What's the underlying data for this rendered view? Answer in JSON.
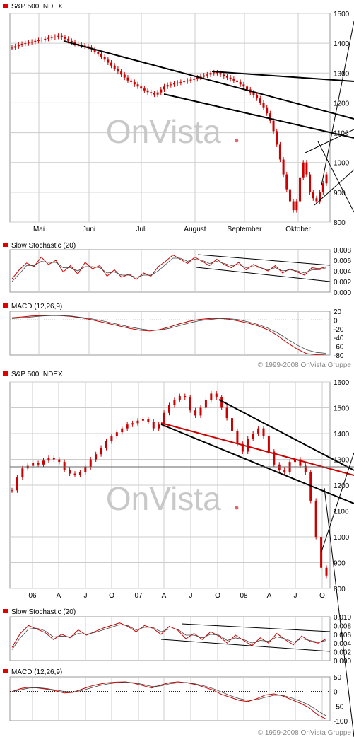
{
  "copyright": "© 1999-2008 OnVista Gruppe",
  "watermark": "OnVista",
  "colors": {
    "red": "#cc0000",
    "black": "#000000",
    "grid": "#cccccc",
    "watermark": "#c8c8c8",
    "legend_square": "#e00000"
  },
  "chart_data": [
    {
      "type": "line",
      "title": "S&P 500 INDEX",
      "style": "candlestick",
      "period": "Apr–Oct 2008 (daily)",
      "x_ticks": [
        "Mai",
        "Juni",
        "Juli",
        "August",
        "September",
        "Oktober"
      ],
      "y_ticks": [
        800,
        900,
        1000,
        1100,
        1200,
        1300,
        1400,
        1500
      ],
      "ylim": [
        800,
        1500
      ],
      "series": [
        {
          "values": [
            1385,
            1390,
            1395,
            1398,
            1400,
            1402,
            1405,
            1408,
            1410,
            1412,
            1415,
            1418,
            1420,
            1422,
            1425,
            1420,
            1415,
            1408,
            1404,
            1398,
            1394,
            1392,
            1390,
            1385,
            1380,
            1372,
            1365,
            1355,
            1345,
            1335,
            1325,
            1315,
            1305,
            1295,
            1285,
            1275,
            1270,
            1262,
            1255,
            1248,
            1242,
            1236,
            1232,
            1228,
            1235,
            1245,
            1255,
            1260,
            1262,
            1265,
            1268,
            1270,
            1272,
            1275,
            1278,
            1280,
            1285,
            1288,
            1292,
            1295,
            1300,
            1302,
            1300,
            1295,
            1290,
            1285,
            1280,
            1275,
            1270,
            1262,
            1255,
            1245,
            1235,
            1225,
            1215,
            1200,
            1185,
            1165,
            1140,
            1105,
            1060,
            1010,
            960,
            910,
            870,
            840,
            870,
            950,
            1000,
            960,
            900,
            880,
            870,
            900,
            930,
            960
          ]
        }
      ],
      "grid": true
    },
    {
      "type": "line",
      "title": "Slow Stochastic (20)",
      "y_ticks": [
        "0.008",
        "0.006",
        "0.004",
        "0.002",
        "0.000"
      ],
      "ylim": [
        0,
        0.008
      ],
      "series": [
        {
          "values": [
            0.0025,
            0.0042,
            0.0055,
            0.0048,
            0.0066,
            0.0052,
            0.006,
            0.0038,
            0.005,
            0.0034,
            0.0056,
            0.0044,
            0.005,
            0.003,
            0.0042,
            0.0028,
            0.0034,
            0.0024,
            0.0036,
            0.003,
            0.0048,
            0.0058,
            0.007,
            0.0062,
            0.0054,
            0.0066,
            0.0058,
            0.005,
            0.0062,
            0.0052,
            0.0046,
            0.0056,
            0.0042,
            0.0052,
            0.0046,
            0.004,
            0.005,
            0.0036,
            0.0044,
            0.0038,
            0.0032,
            0.0046,
            0.0044,
            0.0048
          ]
        },
        {
          "values": [
            0.002,
            0.0034,
            0.005,
            0.005,
            0.0058,
            0.0056,
            0.0056,
            0.0046,
            0.0046,
            0.004,
            0.0048,
            0.0048,
            0.0046,
            0.0036,
            0.0038,
            0.0032,
            0.0032,
            0.0028,
            0.0032,
            0.0032,
            0.004,
            0.0052,
            0.0064,
            0.0064,
            0.0058,
            0.0062,
            0.006,
            0.0054,
            0.0058,
            0.0054,
            0.005,
            0.0052,
            0.0046,
            0.0048,
            0.0046,
            0.0042,
            0.0046,
            0.004,
            0.0042,
            0.004,
            0.0036,
            0.0042,
            0.0042,
            0.0046
          ]
        }
      ],
      "grid": true
    },
    {
      "type": "line",
      "title": "MACD (12,26,9)",
      "y_ticks": [
        "20",
        "0",
        "-20",
        "-40",
        "-60",
        "-80"
      ],
      "ylim": [
        -80,
        20
      ],
      "series": [
        {
          "values": [
            5,
            7,
            9,
            10,
            11,
            10,
            8,
            5,
            1,
            -4,
            -9,
            -14,
            -19,
            -23,
            -25,
            -22,
            -16,
            -9,
            -3,
            1,
            3,
            4,
            2,
            -2,
            -7,
            -13,
            -22,
            -35,
            -52,
            -66,
            -77,
            -79,
            -78
          ]
        },
        {
          "values": [
            3,
            5,
            7,
            9,
            10,
            10,
            9,
            6,
            3,
            -1,
            -6,
            -11,
            -16,
            -20,
            -23,
            -23,
            -19,
            -13,
            -7,
            -2,
            1,
            3,
            3,
            1,
            -4,
            -10,
            -18,
            -29,
            -43,
            -57,
            -68,
            -74,
            -76
          ]
        }
      ],
      "grid": true
    },
    {
      "type": "line",
      "title": "S&P 500 INDEX",
      "style": "candlestick",
      "period": "2006–2008 (weekly)",
      "x_ticks": [
        "06",
        "A",
        "J",
        "O",
        "07",
        "A",
        "J",
        "O",
        "08",
        "A",
        "J",
        "O"
      ],
      "y_ticks": [
        800,
        900,
        1000,
        1100,
        1200,
        1300,
        1400,
        1500,
        1600
      ],
      "ylim": [
        800,
        1600
      ],
      "series": [
        {
          "values": [
            1180,
            1230,
            1265,
            1275,
            1285,
            1280,
            1295,
            1305,
            1300,
            1290,
            1260,
            1245,
            1240,
            1250,
            1270,
            1300,
            1320,
            1345,
            1370,
            1390,
            1405,
            1420,
            1435,
            1440,
            1450,
            1455,
            1445,
            1420,
            1435,
            1480,
            1510,
            1530,
            1545,
            1540,
            1490,
            1470,
            1500,
            1530,
            1555,
            1540,
            1500,
            1460,
            1410,
            1360,
            1330,
            1380,
            1400,
            1420,
            1390,
            1330,
            1280,
            1260,
            1250,
            1290,
            1300,
            1275,
            1250,
            1140,
            1000,
            880,
            850
          ]
        }
      ],
      "grid": true
    },
    {
      "type": "line",
      "title": "Slow Stochastic (20)",
      "y_ticks": [
        "0.010",
        "0.008",
        "0.006",
        "0.004",
        "0.002",
        "0.000"
      ],
      "ylim": [
        0,
        0.01
      ],
      "series": [
        {
          "values": [
            0.003,
            0.0062,
            0.008,
            0.0072,
            0.0064,
            0.0048,
            0.006,
            0.0052,
            0.007,
            0.0058,
            0.0066,
            0.0074,
            0.008,
            0.0086,
            0.0078,
            0.0066,
            0.008,
            0.0074,
            0.006,
            0.0078,
            0.007,
            0.005,
            0.0062,
            0.0048,
            0.0066,
            0.0056,
            0.004,
            0.0058,
            0.0046,
            0.0034,
            0.0052,
            0.004,
            0.0062,
            0.0048,
            0.0036,
            0.0056,
            0.0044,
            0.004,
            0.005
          ]
        },
        {
          "values": [
            0.0025,
            0.0052,
            0.0072,
            0.0074,
            0.0068,
            0.0054,
            0.0056,
            0.0054,
            0.0062,
            0.006,
            0.0064,
            0.007,
            0.0076,
            0.0082,
            0.008,
            0.007,
            0.0076,
            0.0076,
            0.0066,
            0.0072,
            0.0072,
            0.0058,
            0.0058,
            0.0052,
            0.006,
            0.0058,
            0.0046,
            0.0052,
            0.0048,
            0.004,
            0.0046,
            0.0044,
            0.0054,
            0.005,
            0.0042,
            0.005,
            0.0046,
            0.0042,
            0.0046
          ]
        }
      ],
      "grid": true
    },
    {
      "type": "line",
      "title": "MACD (12,26,9)",
      "y_ticks": [
        "50",
        "0",
        "-50",
        "-100"
      ],
      "ylim": [
        -100,
        50
      ],
      "series": [
        {
          "values": [
            0,
            10,
            15,
            12,
            8,
            2,
            -5,
            -3,
            8,
            18,
            25,
            30,
            32,
            33,
            28,
            20,
            12,
            22,
            30,
            33,
            30,
            24,
            15,
            5,
            -10,
            -20,
            -30,
            -34,
            -25,
            -12,
            -8,
            -15,
            -28,
            -40,
            -55,
            -80,
            -95
          ]
        },
        {
          "values": [
            0,
            6,
            12,
            13,
            10,
            5,
            0,
            -2,
            3,
            12,
            20,
            26,
            30,
            32,
            30,
            24,
            17,
            19,
            26,
            30,
            31,
            26,
            19,
            10,
            -2,
            -14,
            -24,
            -30,
            -28,
            -20,
            -13,
            -13,
            -22,
            -33,
            -46,
            -66,
            -84
          ]
        }
      ],
      "grid": true
    }
  ]
}
